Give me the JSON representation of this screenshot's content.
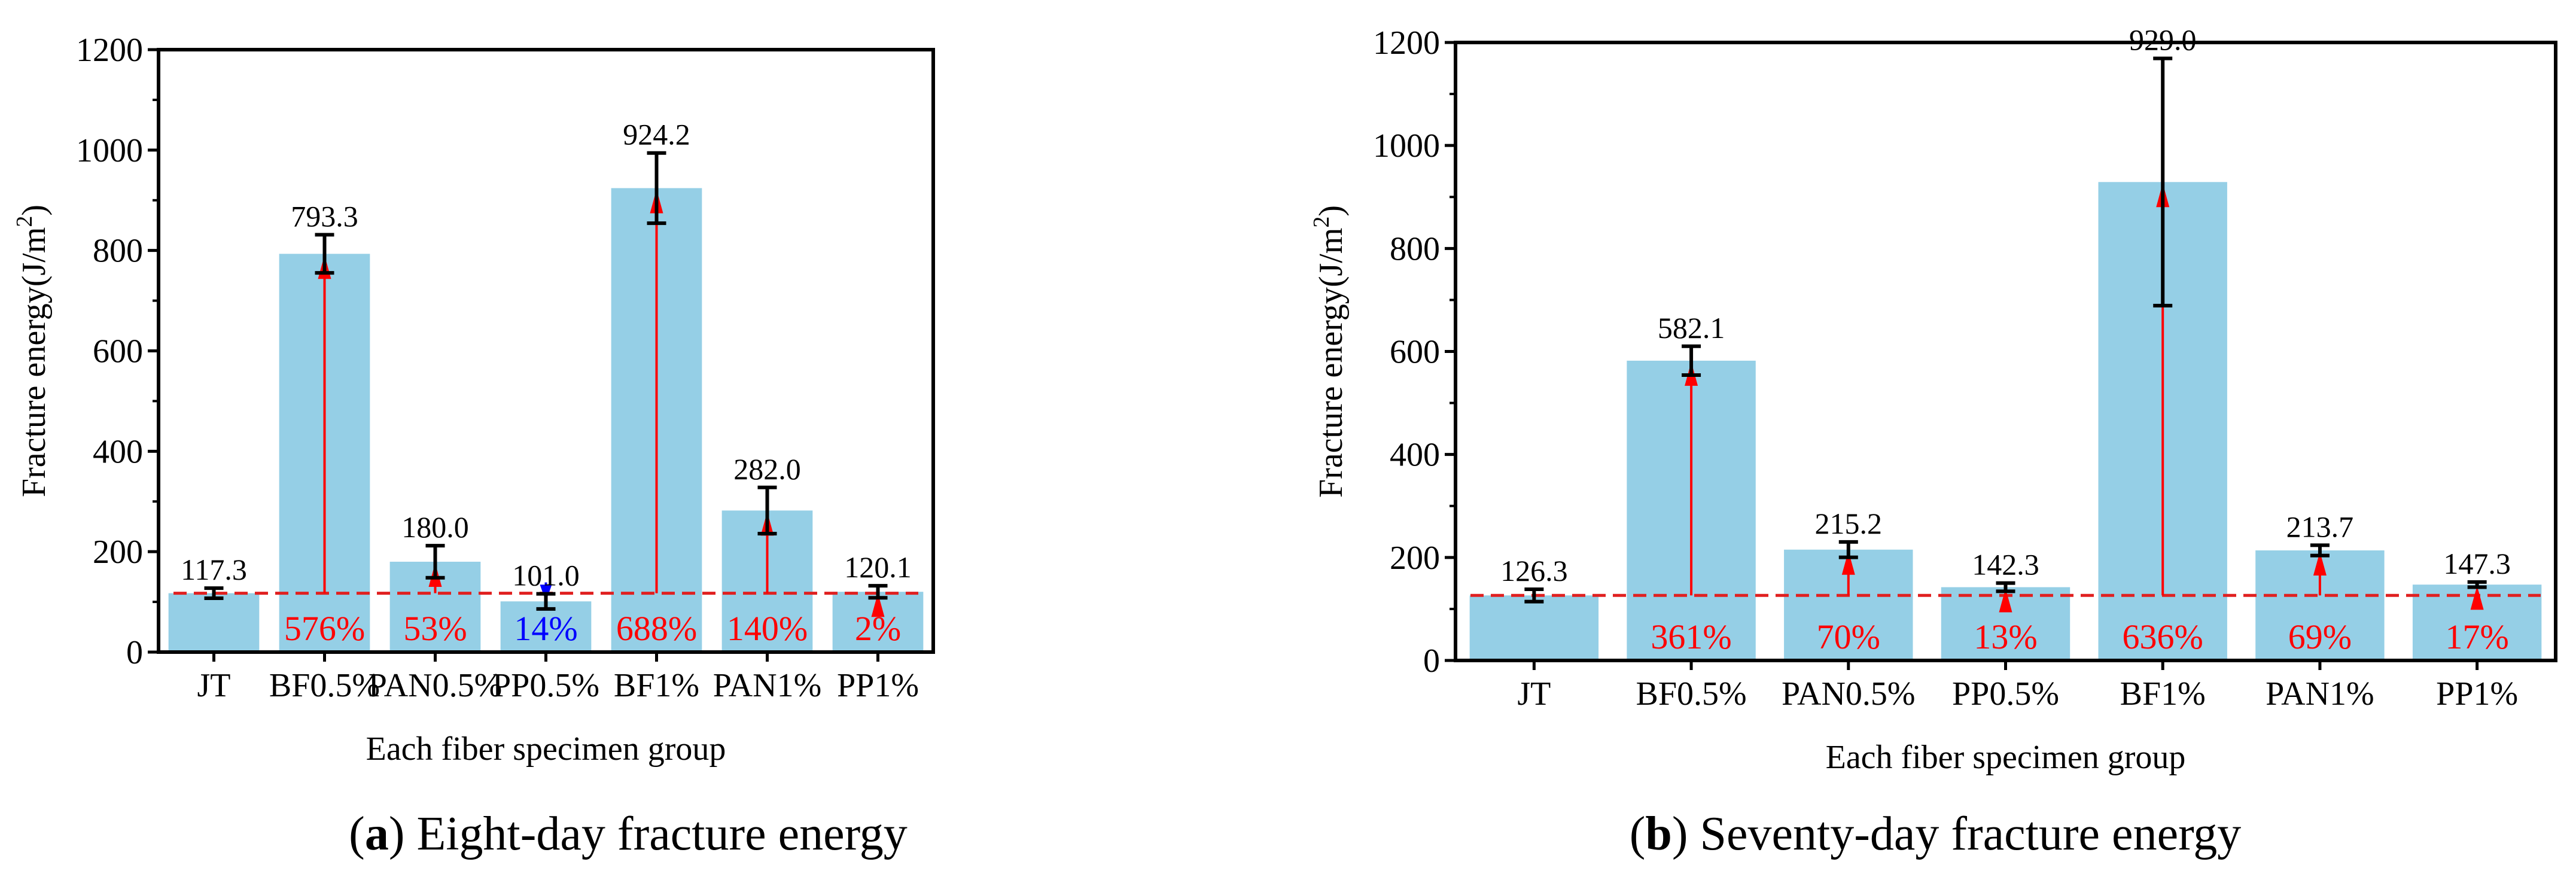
{
  "colors": {
    "bar": "#95cfe6",
    "increase": "#ff0000",
    "decrease": "#0000ff",
    "baseline": "#e02020",
    "axis": "#000000"
  },
  "chart_data": [
    {
      "type": "bar",
      "panel_letter": "a",
      "caption_open": "(",
      "caption_close": ")",
      "caption_text": " Eight-day fracture energy",
      "xlabel": "Each fiber specimen group",
      "ylabel_main": "Fracture energy(J/m",
      "ylabel_sup": "2",
      "ylabel_close": ")",
      "ylim": [
        0,
        1200
      ],
      "yticks": [
        0,
        200,
        400,
        600,
        800,
        1000,
        1200
      ],
      "ytick_labels": [
        "0",
        "200",
        "400",
        "600",
        "800",
        "1000",
        "1200"
      ],
      "categories": [
        "JT",
        "BF0.5%",
        "PAN0.5%",
        "PP0.5%",
        "BF1%",
        "PAN1%",
        "PP1%"
      ],
      "values": [
        117.3,
        793.3,
        180.0,
        101.0,
        924.2,
        282.0,
        120.1
      ],
      "value_labels": [
        "117.3",
        "793.3",
        "180.0",
        "101.0",
        "924.2",
        "282.0",
        "120.1"
      ],
      "errors": [
        10,
        38,
        32,
        15,
        70,
        46,
        12
      ],
      "baseline": 117.3,
      "change_labels": [
        "",
        "576%",
        "53%",
        "14%",
        "688%",
        "140%",
        "2%"
      ],
      "change_direction": [
        "",
        "up",
        "up",
        "down",
        "up",
        "up",
        "up"
      ]
    },
    {
      "type": "bar",
      "panel_letter": "b",
      "caption_open": "(",
      "caption_close": ")",
      "caption_text": " Seventy-day fracture energy",
      "xlabel": "Each fiber specimen group",
      "ylabel_main": "Fracture energy(J/m",
      "ylabel_sup": "2",
      "ylabel_close": ")",
      "ylim": [
        0,
        1200
      ],
      "yticks": [
        0,
        200,
        400,
        600,
        800,
        1000,
        1200
      ],
      "ytick_labels": [
        "0",
        "200",
        "400",
        "600",
        "800",
        "1000",
        "1200"
      ],
      "categories": [
        "JT",
        "BF0.5%",
        "PAN0.5%",
        "PP0.5%",
        "BF1%",
        "PAN1%",
        "PP1%"
      ],
      "values": [
        126.3,
        582.1,
        215.2,
        142.3,
        929.0,
        213.7,
        147.3
      ],
      "value_labels": [
        "126.3",
        "582.1",
        "215.2",
        "142.3",
        "929.0",
        "213.7",
        "147.3"
      ],
      "errors": [
        12,
        28,
        15,
        8,
        240,
        10,
        5
      ],
      "baseline": 126.3,
      "change_labels": [
        "",
        "361%",
        "70%",
        "13%",
        "636%",
        "69%",
        "17%"
      ],
      "change_direction": [
        "",
        "up",
        "up",
        "up",
        "up",
        "up",
        "up"
      ]
    }
  ]
}
